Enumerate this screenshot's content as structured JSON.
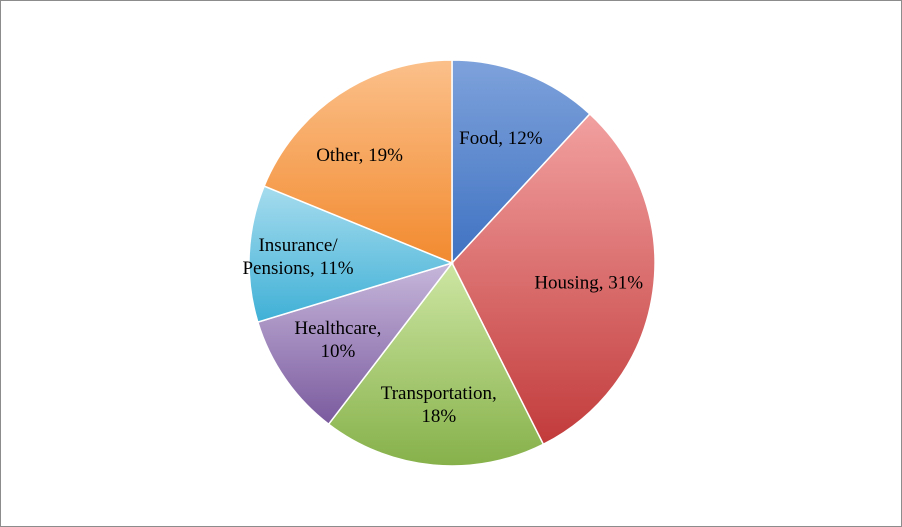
{
  "chart_data": {
    "type": "pie",
    "title": "",
    "slices": [
      {
        "name": "Food",
        "value": 12,
        "label_lines": [
          "Food, 12%"
        ],
        "color": "#7ea2db",
        "color_dark": "#3f72c2"
      },
      {
        "name": "Housing",
        "value": 31,
        "label_lines": [
          "Housing, 31%"
        ],
        "color": "#f2a0a0",
        "color_dark": "#c23b3b"
      },
      {
        "name": "Transportation",
        "value": 18,
        "label_lines": [
          "Transportation,",
          "18%"
        ],
        "color": "#cde6a3",
        "color_dark": "#86b14a"
      },
      {
        "name": "Healthcare",
        "value": 10,
        "label_lines": [
          "Healthcare,",
          "10%"
        ],
        "color": "#c7b7db",
        "color_dark": "#7a5a9e"
      },
      {
        "name": "Insurance/ Pensions",
        "value": 11,
        "label_lines": [
          "Insurance/",
          "Pensions, 11%"
        ],
        "color": "#a6dcee",
        "color_dark": "#3fb0d6"
      },
      {
        "name": "Other",
        "value": 19,
        "label_lines": [
          "Other, 19%"
        ],
        "color": "#fbc08a",
        "color_dark": "#f28a2f"
      }
    ],
    "start_angle_deg": 0,
    "direction": "clockwise",
    "legend": "none",
    "data_labels": "inside"
  }
}
